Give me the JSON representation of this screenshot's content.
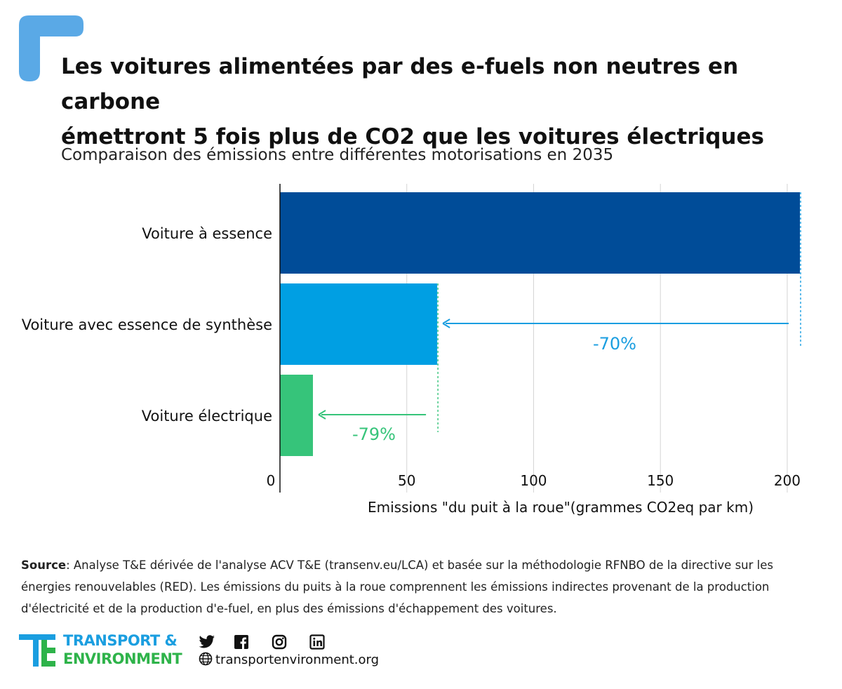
{
  "title_line1": "Les voitures alimentées par des e-fuels non neutres en carbone",
  "title_line2": "émettront 5 fois plus de CO2 que les voitures électriques",
  "subtitle": "Comparaison des émissions entre différentes motorisations en 2035",
  "chart_data": {
    "type": "bar",
    "orientation": "horizontal",
    "categories": [
      "Voiture à essence",
      "Voiture avec essence de synthèse",
      "Voiture électrique"
    ],
    "values": [
      205,
      62,
      13
    ],
    "colors": [
      "#004c98",
      "#009fe3",
      "#36c47a"
    ],
    "xlabel": "Emissions \"du puit à la roue\"(grammes CO2eq par km)",
    "xlim": [
      0,
      205
    ],
    "xticks": [
      0,
      50,
      100,
      150,
      200
    ],
    "grid": true,
    "annotations": [
      {
        "text": "-70%",
        "from": 205,
        "to": 62,
        "color": "#1a9ee0"
      },
      {
        "text": "-79%",
        "from": 62,
        "to": 13,
        "color": "#36c47a"
      }
    ]
  },
  "source": {
    "label": "Source",
    "text": ": Analyse T&E dérivée de l'analyse ACV T&E (transenv.eu/LCA) et basée sur la méthodologie RFNBO de la directive sur les énergies renouvelables (RED). Les émissions du puits à la roue comprennent les émissions indirectes provenant de la production d'électricité et de la production d'e-fuel, en plus des émissions d'échappement des voitures."
  },
  "footer": {
    "brand_line1": "TRANSPORT &",
    "brand_line2": "ENVIRONMENT",
    "website": "transportenvironment.org",
    "icons": [
      "twitter-icon",
      "facebook-icon",
      "instagram-icon",
      "linkedin-icon",
      "globe-icon"
    ]
  },
  "colors": {
    "accent_blue": "#5aa9e6",
    "brand_blue": "#1a9ee0",
    "brand_green": "#2eb34a"
  }
}
